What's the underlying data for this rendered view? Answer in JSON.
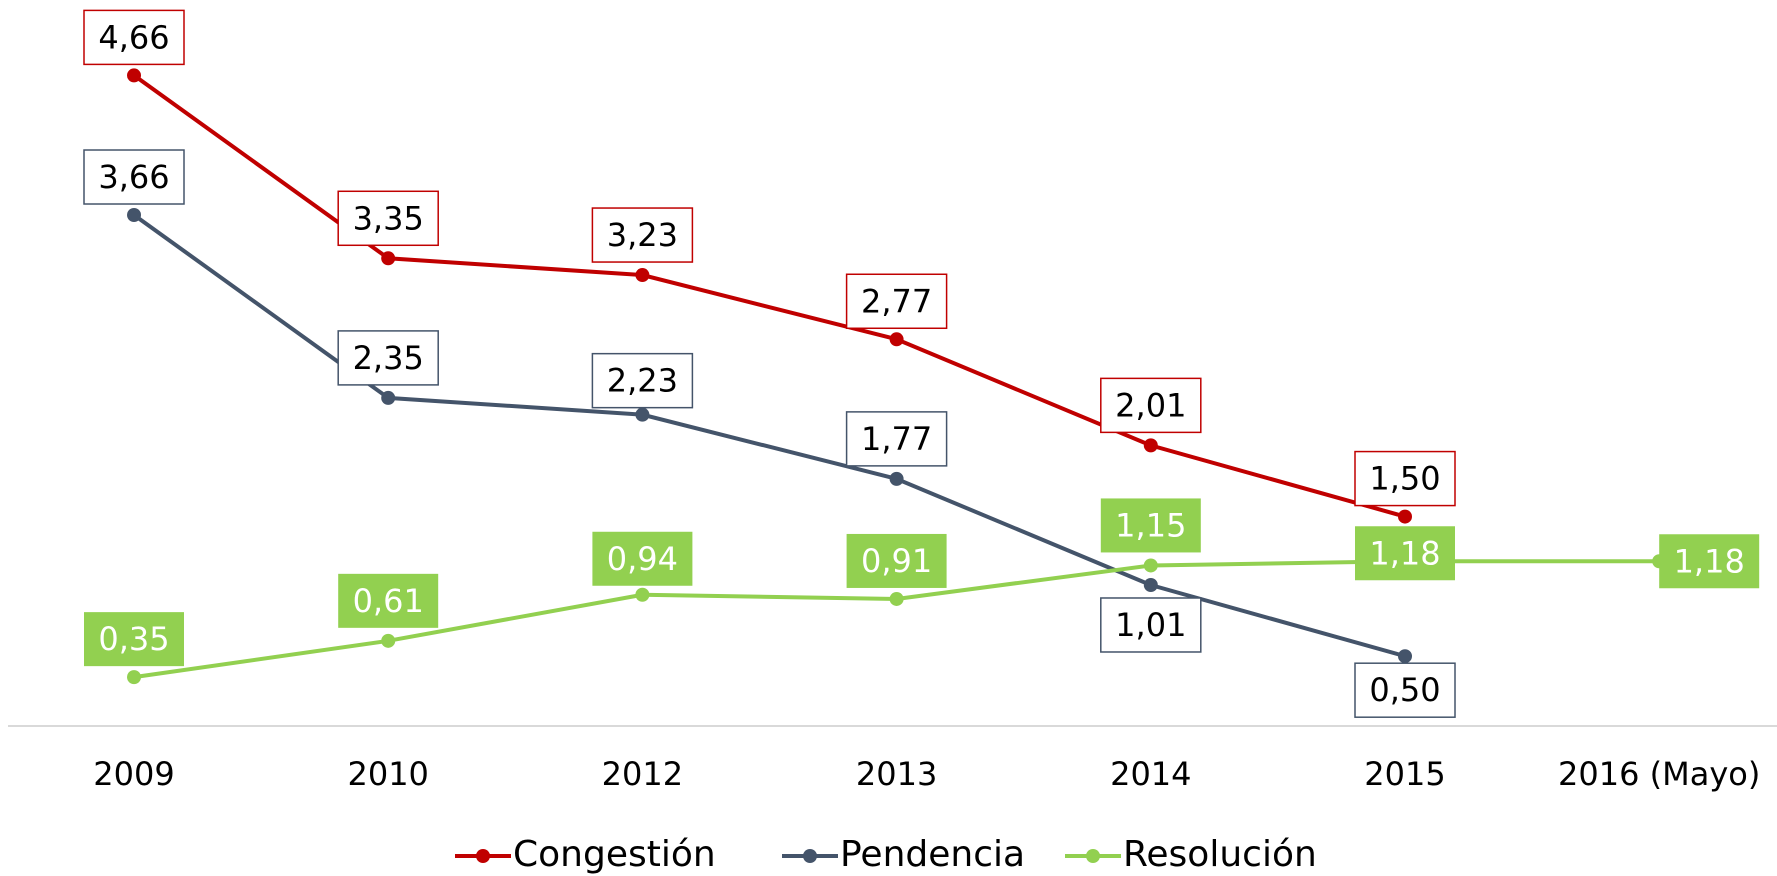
{
  "chart_data": {
    "type": "line",
    "categories": [
      "2009",
      "2010",
      "2012",
      "2013",
      "2014",
      "2015",
      "2016 (Mayo)"
    ],
    "series": [
      {
        "name": "Congestión",
        "color": "#c00000",
        "values": [
          4.66,
          3.35,
          3.23,
          2.77,
          2.01,
          1.5,
          null
        ],
        "value_labels": [
          "4,66",
          "3,35",
          "3,23",
          "2,77",
          "2,01",
          "1,50",
          null
        ]
      },
      {
        "name": "Pendencia",
        "color": "#44546a",
        "values": [
          3.66,
          2.35,
          2.23,
          1.77,
          1.01,
          0.5,
          null
        ],
        "value_labels": [
          "3,66",
          "2,35",
          "2,23",
          "1,77",
          "1,01",
          "0,50",
          null
        ]
      },
      {
        "name": "Resolución",
        "color": "#92d050",
        "values": [
          0.35,
          0.61,
          0.94,
          0.91,
          1.15,
          1.18,
          1.18
        ],
        "value_labels": [
          "0,35",
          "0,61",
          "0,94",
          "0,91",
          "1,15",
          "1,18",
          "1,18"
        ]
      }
    ],
    "ylim": [
      0,
      5.2
    ],
    "legend": "bottom"
  }
}
